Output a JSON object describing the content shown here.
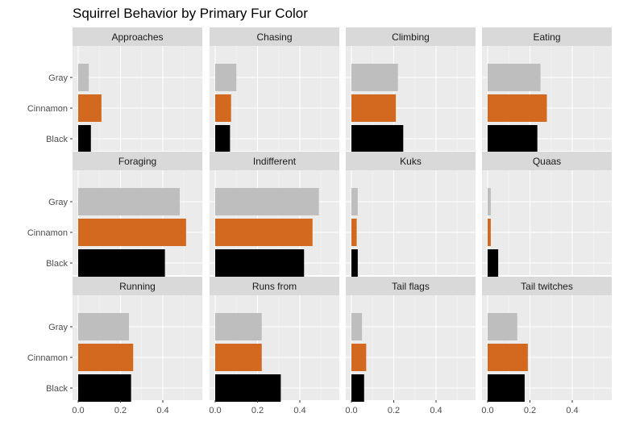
{
  "chart_data": {
    "type": "bar",
    "orientation": "horizontal",
    "title": "Squirrel Behavior by Primary Fur Color",
    "xlabel": "",
    "ylabel": "",
    "categories": [
      "Gray",
      "Cinnamon",
      "Black"
    ],
    "xlim": [
      0,
      0.56
    ],
    "x_ticks": [
      "0.0",
      "0.2",
      "0.4"
    ],
    "grid": true,
    "colors": {
      "Gray": "#bebebe",
      "Cinnamon": "#d2691e",
      "Black": "#000000"
    },
    "panels": [
      {
        "name": "Approaches",
        "values": {
          "Gray": 0.05,
          "Cinnamon": 0.11,
          "Black": 0.06
        }
      },
      {
        "name": "Chasing",
        "values": {
          "Gray": 0.1,
          "Cinnamon": 0.075,
          "Black": 0.07
        }
      },
      {
        "name": "Climbing",
        "values": {
          "Gray": 0.22,
          "Cinnamon": 0.21,
          "Black": 0.245
        }
      },
      {
        "name": "Eating",
        "values": {
          "Gray": 0.25,
          "Cinnamon": 0.28,
          "Black": 0.235
        }
      },
      {
        "name": "Foraging",
        "values": {
          "Gray": 0.48,
          "Cinnamon": 0.51,
          "Black": 0.41
        }
      },
      {
        "name": "Indifferent",
        "values": {
          "Gray": 0.49,
          "Cinnamon": 0.46,
          "Black": 0.42
        }
      },
      {
        "name": "Kuks",
        "values": {
          "Gray": 0.03,
          "Cinnamon": 0.025,
          "Black": 0.03
        }
      },
      {
        "name": "Quaas",
        "values": {
          "Gray": 0.015,
          "Cinnamon": 0.015,
          "Black": 0.05
        }
      },
      {
        "name": "Running",
        "values": {
          "Gray": 0.24,
          "Cinnamon": 0.26,
          "Black": 0.25
        }
      },
      {
        "name": "Runs from",
        "values": {
          "Gray": 0.22,
          "Cinnamon": 0.22,
          "Black": 0.31
        }
      },
      {
        "name": "Tail flags",
        "values": {
          "Gray": 0.05,
          "Cinnamon": 0.07,
          "Black": 0.06
        }
      },
      {
        "name": "Tail twitches",
        "values": {
          "Gray": 0.14,
          "Cinnamon": 0.19,
          "Black": 0.175
        }
      }
    ]
  }
}
